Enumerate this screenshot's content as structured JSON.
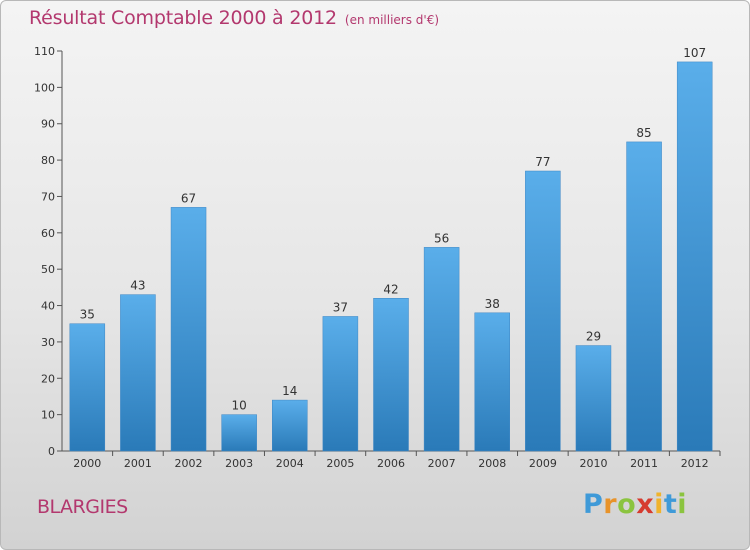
{
  "title": "Résultat Comptable 2000 à 2012",
  "unit": "(en milliers d'€)",
  "commune": "BLARGIES",
  "logo": {
    "letters": [
      "P",
      "r",
      "o",
      "x",
      "i",
      "t",
      "i"
    ],
    "colors": [
      "#3f9ad8",
      "#e8932a",
      "#8bc43f",
      "#d63b2f",
      "#f0b32c",
      "#3f9ad8",
      "#8bc43f"
    ]
  },
  "colors": {
    "title": "#b3386e",
    "bar_top": "#5aaeea",
    "bar_bottom": "#2a7ab8",
    "axis": "#555555"
  },
  "chart_data": {
    "type": "bar",
    "title": "Résultat Comptable 2000 à 2012",
    "ylabel": "en milliers d'€",
    "xlabel": "",
    "categories": [
      "2000",
      "2001",
      "2002",
      "2003",
      "2004",
      "2005",
      "2006",
      "2007",
      "2008",
      "2009",
      "2010",
      "2011",
      "2012"
    ],
    "values": [
      35,
      43,
      67,
      10,
      14,
      37,
      42,
      56,
      38,
      77,
      29,
      85,
      107
    ],
    "ylim": [
      0,
      110
    ],
    "yticks": [
      0,
      10,
      20,
      30,
      40,
      50,
      60,
      70,
      80,
      90,
      100,
      110
    ],
    "grid": false
  }
}
